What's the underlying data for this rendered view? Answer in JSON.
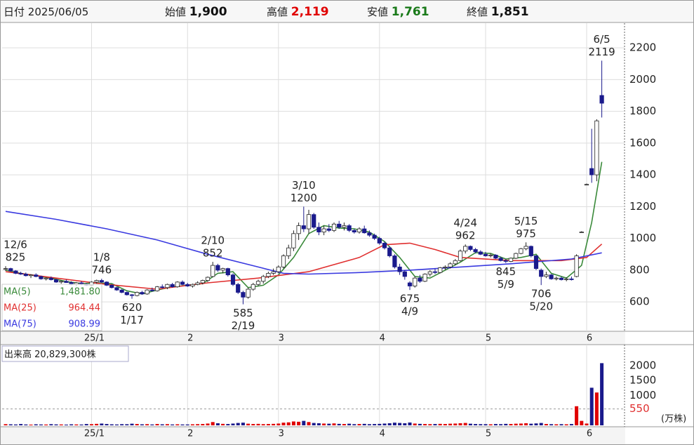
{
  "header": {
    "date_label": "日付",
    "date": "2025/06/05",
    "items": [
      {
        "label": "始値",
        "value": "1,900",
        "color": "#111111"
      },
      {
        "label": "高値",
        "value": "2,119",
        "color": "#e00000"
      },
      {
        "label": "安値",
        "value": "1,761",
        "color": "#1a7a1a"
      },
      {
        "label": "終値",
        "value": "1,851",
        "color": "#111111"
      }
    ]
  },
  "chart_data": {
    "type": "candlestick",
    "up_color": "#ffffff",
    "down_color": "#1a1a8c",
    "xlim": [
      -0.7,
      122.5
    ],
    "xticks": [
      {
        "value": 17,
        "label": "25/1"
      },
      {
        "value": 36,
        "label": "2"
      },
      {
        "value": 54,
        "label": "3"
      },
      {
        "value": 74,
        "label": "4"
      },
      {
        "value": 95,
        "label": "5"
      },
      {
        "value": 115,
        "label": "6"
      }
    ],
    "ylim": [
      415,
      2355
    ],
    "yticks": [
      600,
      800,
      1000,
      1200,
      1400,
      1600,
      1800,
      2000,
      2200
    ],
    "grid": true,
    "candles": [
      [
        805,
        825,
        795,
        810
      ],
      [
        810,
        815,
        790,
        795
      ],
      [
        795,
        800,
        775,
        780
      ],
      [
        780,
        790,
        770,
        775
      ],
      [
        775,
        785,
        760,
        765
      ],
      [
        765,
        775,
        750,
        770
      ],
      [
        770,
        780,
        755,
        760
      ],
      [
        760,
        765,
        740,
        745
      ],
      [
        745,
        755,
        735,
        750
      ],
      [
        750,
        760,
        735,
        740
      ],
      [
        740,
        745,
        720,
        725
      ],
      [
        725,
        735,
        715,
        730
      ],
      [
        730,
        740,
        720,
        722
      ],
      [
        722,
        730,
        705,
        710
      ],
      [
        710,
        725,
        700,
        720
      ],
      [
        720,
        730,
        705,
        712
      ],
      [
        712,
        720,
        700,
        705
      ],
      [
        705,
        730,
        700,
        725
      ],
      [
        725,
        740,
        715,
        735
      ],
      [
        735,
        746,
        720,
        725
      ],
      [
        725,
        730,
        700,
        705
      ],
      [
        705,
        710,
        685,
        690
      ],
      [
        690,
        695,
        670,
        675
      ],
      [
        675,
        680,
        655,
        660
      ],
      [
        660,
        665,
        640,
        645
      ],
      [
        645,
        650,
        620,
        640
      ],
      [
        640,
        665,
        635,
        660
      ],
      [
        660,
        670,
        645,
        650
      ],
      [
        650,
        680,
        645,
        675
      ],
      [
        675,
        690,
        665,
        670
      ],
      [
        670,
        700,
        665,
        695
      ],
      [
        695,
        710,
        685,
        690
      ],
      [
        690,
        715,
        680,
        710
      ],
      [
        710,
        720,
        690,
        695
      ],
      [
        695,
        730,
        690,
        725
      ],
      [
        725,
        735,
        705,
        710
      ],
      [
        710,
        720,
        695,
        700
      ],
      [
        700,
        715,
        690,
        710
      ],
      [
        710,
        730,
        705,
        720
      ],
      [
        720,
        740,
        710,
        735
      ],
      [
        735,
        760,
        725,
        755
      ],
      [
        760,
        852,
        755,
        830
      ],
      [
        830,
        840,
        790,
        800
      ],
      [
        800,
        815,
        780,
        810
      ],
      [
        810,
        815,
        760,
        770
      ],
      [
        770,
        780,
        700,
        710
      ],
      [
        710,
        720,
        650,
        660
      ],
      [
        660,
        670,
        585,
        630
      ],
      [
        630,
        690,
        620,
        680
      ],
      [
        680,
        720,
        670,
        710
      ],
      [
        710,
        740,
        700,
        730
      ],
      [
        730,
        770,
        715,
        760
      ],
      [
        760,
        790,
        750,
        780
      ],
      [
        780,
        810,
        770,
        790
      ],
      [
        790,
        830,
        780,
        820
      ],
      [
        820,
        900,
        810,
        890
      ],
      [
        890,
        960,
        870,
        940
      ],
      [
        940,
        1050,
        920,
        1030
      ],
      [
        1030,
        1100,
        990,
        1080
      ],
      [
        1080,
        1200,
        1040,
        1060
      ],
      [
        1060,
        1180,
        1030,
        1150
      ],
      [
        1150,
        1160,
        1060,
        1070
      ],
      [
        1070,
        1100,
        1020,
        1040
      ],
      [
        1040,
        1080,
        1020,
        1060
      ],
      [
        1060,
        1090,
        1040,
        1050
      ],
      [
        1050,
        1100,
        1040,
        1090
      ],
      [
        1090,
        1110,
        1060,
        1070
      ],
      [
        1070,
        1100,
        1050,
        1080
      ],
      [
        1080,
        1090,
        1040,
        1050
      ],
      [
        1050,
        1060,
        1030,
        1040
      ],
      [
        1040,
        1070,
        1030,
        1060
      ],
      [
        1060,
        1080,
        1030,
        1035
      ],
      [
        1035,
        1050,
        1010,
        1020
      ],
      [
        1020,
        1030,
        990,
        1000
      ],
      [
        1000,
        1010,
        960,
        970
      ],
      [
        970,
        980,
        930,
        940
      ],
      [
        940,
        950,
        880,
        890
      ],
      [
        890,
        900,
        810,
        820
      ],
      [
        820,
        840,
        770,
        790
      ],
      [
        790,
        800,
        740,
        760
      ],
      [
        720,
        730,
        675,
        700
      ],
      [
        700,
        760,
        690,
        750
      ],
      [
        750,
        770,
        720,
        730
      ],
      [
        730,
        780,
        725,
        775
      ],
      [
        775,
        800,
        760,
        790
      ],
      [
        790,
        810,
        775,
        785
      ],
      [
        785,
        820,
        780,
        815
      ],
      [
        815,
        830,
        800,
        820
      ],
      [
        820,
        850,
        810,
        840
      ],
      [
        840,
        870,
        830,
        860
      ],
      [
        860,
        930,
        855,
        920
      ],
      [
        920,
        962,
        905,
        950
      ],
      [
        950,
        955,
        920,
        930
      ],
      [
        930,
        940,
        905,
        915
      ],
      [
        915,
        925,
        895,
        900
      ],
      [
        900,
        915,
        885,
        890
      ],
      [
        890,
        905,
        880,
        895
      ],
      [
        895,
        900,
        870,
        875
      ],
      [
        875,
        885,
        855,
        860
      ],
      [
        860,
        870,
        845,
        855
      ],
      [
        855,
        880,
        850,
        875
      ],
      [
        875,
        910,
        870,
        905
      ],
      [
        905,
        940,
        900,
        935
      ],
      [
        935,
        975,
        925,
        950
      ],
      [
        950,
        955,
        880,
        890
      ],
      [
        890,
        895,
        800,
        810
      ],
      [
        800,
        810,
        706,
        760
      ],
      [
        760,
        790,
        750,
        770
      ],
      [
        770,
        775,
        740,
        745
      ],
      [
        745,
        760,
        735,
        750
      ],
      [
        750,
        760,
        735,
        740
      ],
      [
        740,
        755,
        730,
        745
      ],
      [
        745,
        760,
        735,
        740
      ],
      [
        760,
        900,
        755,
        890
      ],
      [
        1040,
        1045,
        1035,
        1040
      ],
      [
        1340,
        1345,
        1335,
        1340
      ],
      [
        1440,
        1690,
        1350,
        1400
      ],
      [
        1400,
        1750,
        1360,
        1740
      ],
      [
        1900,
        2119,
        1761,
        1851
      ]
    ],
    "ma": [
      {
        "name": "MA(5)",
        "color": "#3a8a3a",
        "last_label": "1,481.80",
        "x": [
          0,
          3,
          6,
          9,
          12,
          15,
          18,
          21,
          24,
          27,
          30,
          33,
          36,
          39,
          42,
          45,
          48,
          51,
          54,
          57,
          60,
          63,
          66,
          69,
          72,
          75,
          78,
          81,
          84,
          87,
          90,
          93,
          96,
          99,
          102,
          105,
          108,
          111,
          114,
          116,
          118
        ],
        "values": [
          800,
          780,
          765,
          750,
          728,
          715,
          720,
          715,
          670,
          650,
          675,
          695,
          705,
          715,
          780,
          790,
          690,
          705,
          770,
          880,
          1030,
          1080,
          1065,
          1060,
          1040,
          980,
          880,
          760,
          750,
          800,
          850,
          910,
          905,
          870,
          880,
          900,
          780,
          750,
          830,
          1100,
          1481.8
        ]
      },
      {
        "name": "MA(25)",
        "color": "#e03030",
        "last_label": "964.44",
        "x": [
          0,
          10,
          20,
          30,
          40,
          50,
          60,
          70,
          75,
          80,
          85,
          90,
          100,
          110,
          115,
          118
        ],
        "values": [
          790,
          750,
          710,
          680,
          720,
          750,
          790,
          880,
          960,
          970,
          930,
          880,
          860,
          860,
          880,
          964.44
        ]
      },
      {
        "name": "MA(75)",
        "color": "#3a3ae0",
        "last_label": "908.99",
        "x": [
          0,
          10,
          20,
          30,
          40,
          50,
          55,
          60,
          70,
          80,
          90,
          100,
          112,
          118
        ],
        "values": [
          1170,
          1120,
          1060,
          990,
          900,
          820,
          780,
          775,
          785,
          800,
          820,
          840,
          870,
          908.99
        ]
      }
    ],
    "annotations": [
      {
        "date": "12/6",
        "value": 825
      },
      {
        "date": "1/8",
        "value": 746
      },
      {
        "date": "1/17",
        "value": 620
      },
      {
        "date": "2/10",
        "value": 852
      },
      {
        "date": "2/19",
        "value": 585
      },
      {
        "date": "3/10",
        "value": 1200
      },
      {
        "date": "4/9",
        "value": 675
      },
      {
        "date": "4/24",
        "value": 962
      },
      {
        "date": "5/9",
        "value": 845
      },
      {
        "date": "5/15",
        "value": 975
      },
      {
        "date": "5/20",
        "value": 706
      },
      {
        "date": "6/5",
        "value": 2119
      }
    ],
    "volume": {
      "title": "出来高",
      "total": "20,829,300株",
      "unit": "(万株)",
      "ylim": [
        0,
        2680
      ],
      "yticks": [
        1000,
        1500,
        2000
      ],
      "reference": 550,
      "up_color": "#e00000",
      "down_color": "#1a1a8c",
      "values": [
        40,
        35,
        30,
        45,
        30,
        25,
        35,
        30,
        28,
        40,
        32,
        30,
        25,
        35,
        30,
        28,
        45,
        40,
        50,
        60,
        45,
        35,
        30,
        40,
        38,
        55,
        45,
        35,
        40,
        30,
        45,
        35,
        40,
        30,
        35,
        30,
        30,
        35,
        40,
        45,
        60,
        110,
        70,
        50,
        45,
        60,
        80,
        90,
        55,
        45,
        50,
        40,
        45,
        50,
        60,
        90,
        100,
        130,
        120,
        150,
        110,
        80,
        70,
        60,
        55,
        65,
        50,
        45,
        55,
        40,
        45,
        50,
        40,
        45,
        50,
        60,
        70,
        90,
        80,
        70,
        95,
        60,
        50,
        45,
        40,
        45,
        50,
        45,
        55,
        60,
        70,
        80,
        55,
        45,
        40,
        40,
        35,
        45,
        40,
        50,
        45,
        55,
        60,
        70,
        55,
        65,
        80,
        45,
        40,
        35,
        40,
        35,
        45,
        640,
        150,
        60,
        1260,
        1100,
        2083
      ]
    }
  }
}
